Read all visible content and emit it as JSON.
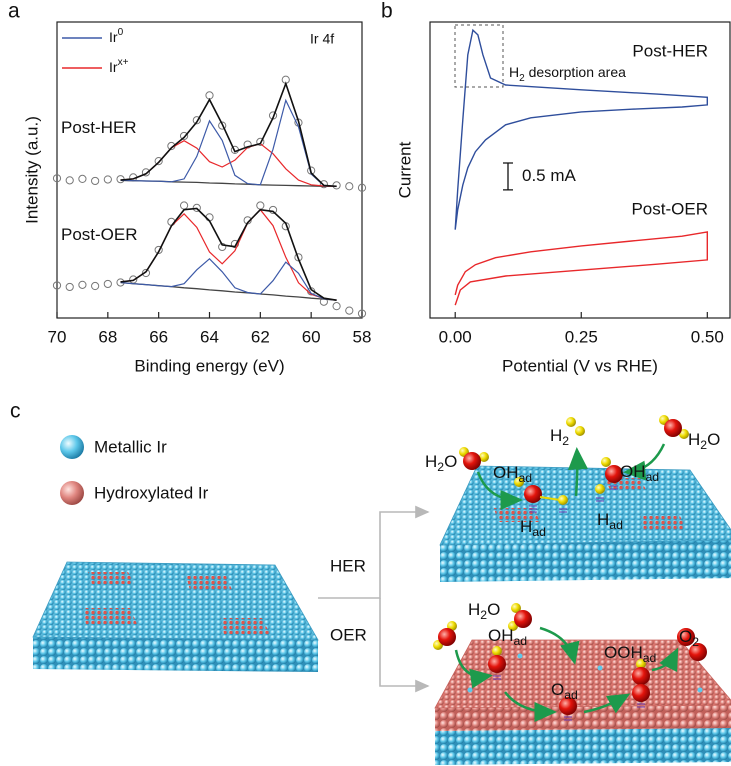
{
  "chart_data": [
    {
      "type": "xps",
      "panel_label": "a",
      "annotation": "Ir 4f",
      "x_label": "Binding energy (eV)",
      "y_label": "Intensity (a.u.)",
      "xlim": [
        70,
        58
      ],
      "xticks": [
        70,
        68,
        66,
        64,
        62,
        60,
        58
      ],
      "ylim": [
        0,
        100
      ],
      "legend": [
        {
          "base": "Ir",
          "sup": "0",
          "color": "#3d5aa8"
        },
        {
          "base": "Ir",
          "sup": "x+",
          "color": "#e8282b"
        }
      ],
      "colors": {
        "data": "#777777",
        "envelope": "#111111",
        "background": "#444444"
      },
      "x": [
        70,
        69.5,
        69,
        68.5,
        68,
        67.5,
        67,
        66.5,
        66,
        65.5,
        65,
        64.5,
        64,
        63.5,
        63,
        62.5,
        62,
        61.5,
        61,
        60.5,
        60,
        59.5,
        59,
        58.5,
        58
      ],
      "spectra": [
        {
          "label": "Post-HER",
          "data": [
            47.2,
            46.5,
            47.0,
            46.3,
            46.8,
            46.9,
            47.5,
            49.2,
            53.0,
            58.1,
            61.5,
            66.8,
            75.2,
            65.0,
            56.8,
            58.6,
            59.5,
            68.4,
            80.5,
            66.0,
            49.8,
            45.2,
            44.8,
            44.5,
            44.0
          ],
          "envelope": [
            null,
            null,
            null,
            null,
            null,
            46.6,
            47.0,
            48.7,
            52.6,
            57.5,
            61.0,
            66.2,
            73.8,
            65.5,
            56.2,
            57.8,
            58.9,
            67.6,
            79.2,
            66.5,
            49.0,
            44.8,
            44.5,
            null,
            null
          ],
          "ir0": [
            null,
            null,
            null,
            null,
            null,
            46.5,
            46.4,
            46.3,
            46.2,
            46.0,
            47.0,
            54.6,
            66.6,
            60.0,
            48.2,
            45.4,
            45.0,
            57.0,
            73.5,
            64.6,
            48.6,
            44.7,
            44.5,
            null,
            null
          ],
          "irx": [
            null,
            null,
            null,
            null,
            null,
            46.6,
            47.0,
            48.7,
            52.6,
            57.5,
            59.9,
            57.4,
            52.8,
            51.0,
            53.3,
            57.6,
            58.9,
            55.5,
            50.4,
            46.6,
            45.0,
            44.6,
            44.5,
            null,
            null
          ],
          "background": [
            null,
            null,
            null,
            null,
            null,
            46.5,
            46.4,
            46.3,
            46.2,
            46.0,
            45.9,
            45.8,
            45.6,
            45.5,
            45.3,
            45.2,
            45.0,
            44.9,
            44.8,
            44.7,
            44.6,
            44.5,
            44.5,
            null,
            null
          ]
        },
        {
          "label": "Post-OER",
          "data": [
            11.0,
            10.5,
            11.2,
            10.8,
            11.5,
            12.0,
            13.0,
            15.2,
            23.0,
            32.5,
            38.0,
            37.2,
            34.0,
            24.0,
            25.0,
            33.0,
            38.0,
            36.5,
            31.0,
            20.5,
            9.0,
            5.5,
            4.0,
            2.5,
            1.5
          ],
          "envelope": [
            null,
            null,
            null,
            null,
            null,
            12.2,
            12.7,
            15.6,
            22.4,
            31.1,
            36.6,
            37.0,
            32.8,
            24.7,
            24.1,
            32.2,
            36.6,
            36.0,
            32.0,
            19.9,
            9.6,
            6.7,
            6.0,
            null,
            null
          ],
          "ir0": [
            null,
            null,
            null,
            null,
            null,
            12.0,
            11.6,
            11.3,
            10.9,
            10.6,
            11.6,
            16.3,
            20.0,
            15.6,
            10.2,
            8.6,
            8.1,
            12.6,
            18.9,
            15.1,
            8.3,
            6.5,
            6.0,
            null,
            null
          ],
          "irx": [
            null,
            null,
            null,
            null,
            null,
            12.2,
            12.7,
            15.6,
            22.4,
            31.1,
            35.2,
            30.6,
            22.3,
            18.3,
            22.7,
            32.1,
            36.6,
            31.2,
            20.5,
            11.9,
            8.0,
            6.6,
            6.0,
            null,
            null
          ],
          "background": [
            null,
            null,
            null,
            null,
            null,
            12.0,
            11.6,
            11.3,
            10.9,
            10.6,
            10.2,
            9.9,
            9.5,
            9.2,
            8.8,
            8.5,
            8.1,
            7.8,
            7.4,
            7.1,
            6.7,
            6.4,
            6.0,
            null,
            null
          ]
        }
      ]
    },
    {
      "type": "cv",
      "panel_label": "b",
      "x_label": "Potential (V vs RHE)",
      "y_label": "Current",
      "xlim": [
        -0.05,
        0.545
      ],
      "xticks": [
        {
          "value": 0,
          "label": "0.00"
        },
        {
          "value": 0.25,
          "label": "0.25"
        },
        {
          "value": 0.5,
          "label": "0.50"
        }
      ],
      "ylim": [
        0,
        5.5
      ],
      "annotation": {
        "base": "H",
        "sub": "2",
        "tail": " desorption area"
      },
      "scale_bar": {
        "value": 0.5,
        "label": "0.5 mA"
      },
      "series": [
        {
          "name": "Post-HER",
          "color": "#2f4e9c",
          "x": [
            0,
            0.005,
            0.015,
            0.025,
            0.035,
            0.045,
            0.055,
            0.07,
            0.1,
            0.25,
            0.4,
            0.5,
            0.5,
            0.45,
            0.35,
            0.25,
            0.15,
            0.1,
            0.06,
            0.04,
            0.025,
            0.015,
            0.005,
            0
          ],
          "values": [
            1.64,
            2.38,
            3.68,
            4.89,
            5.35,
            5.26,
            4.89,
            4.46,
            4.33,
            4.24,
            4.16,
            4.1,
            3.96,
            3.92,
            3.88,
            3.83,
            3.72,
            3.59,
            3.31,
            3.09,
            2.79,
            2.47,
            2.01,
            1.64
          ]
        },
        {
          "name": "Post-OER",
          "color": "#e8282b",
          "x": [
            0,
            0.01,
            0.03,
            0.1,
            0.25,
            0.4,
            0.5,
            0.5,
            0.45,
            0.35,
            0.25,
            0.15,
            0.08,
            0.04,
            0.02,
            0.005,
            0
          ],
          "values": [
            0.24,
            0.52,
            0.67,
            0.78,
            0.89,
            1.0,
            1.08,
            1.6,
            1.52,
            1.43,
            1.34,
            1.23,
            1.12,
            0.99,
            0.86,
            0.61,
            0.43
          ]
        }
      ]
    }
  ],
  "diagram": {
    "panel_label": "c",
    "legend": [
      {
        "label": "Metallic Ir",
        "color": "#4fb8de"
      },
      {
        "label": "Hydroxylated Ir",
        "color": "#d96a66"
      }
    ],
    "routes": [
      {
        "label": "HER",
        "color": "#2c74b5"
      },
      {
        "label": "OER",
        "color": "#e8282b"
      }
    ],
    "her_labels": [
      {
        "base": "H",
        "sub": "2",
        "tail": "O"
      },
      {
        "base": "H",
        "sub": "2"
      },
      {
        "base": "OH",
        "sub": "ad"
      },
      {
        "base": "H",
        "sub": "2",
        "tail": "O"
      },
      {
        "base": "OH",
        "sub": "ad"
      },
      {
        "base": "H",
        "sub": "ad"
      },
      {
        "base": "H",
        "sub": "ad"
      }
    ],
    "oer_labels": [
      {
        "base": "H",
        "sub": "2",
        "tail": "O"
      },
      {
        "base": "OH",
        "sub": "ad"
      },
      {
        "base": "O",
        "sub": "ad"
      },
      {
        "base": "OOH",
        "sub": "ad"
      },
      {
        "base": "O",
        "sub": "2"
      }
    ]
  }
}
